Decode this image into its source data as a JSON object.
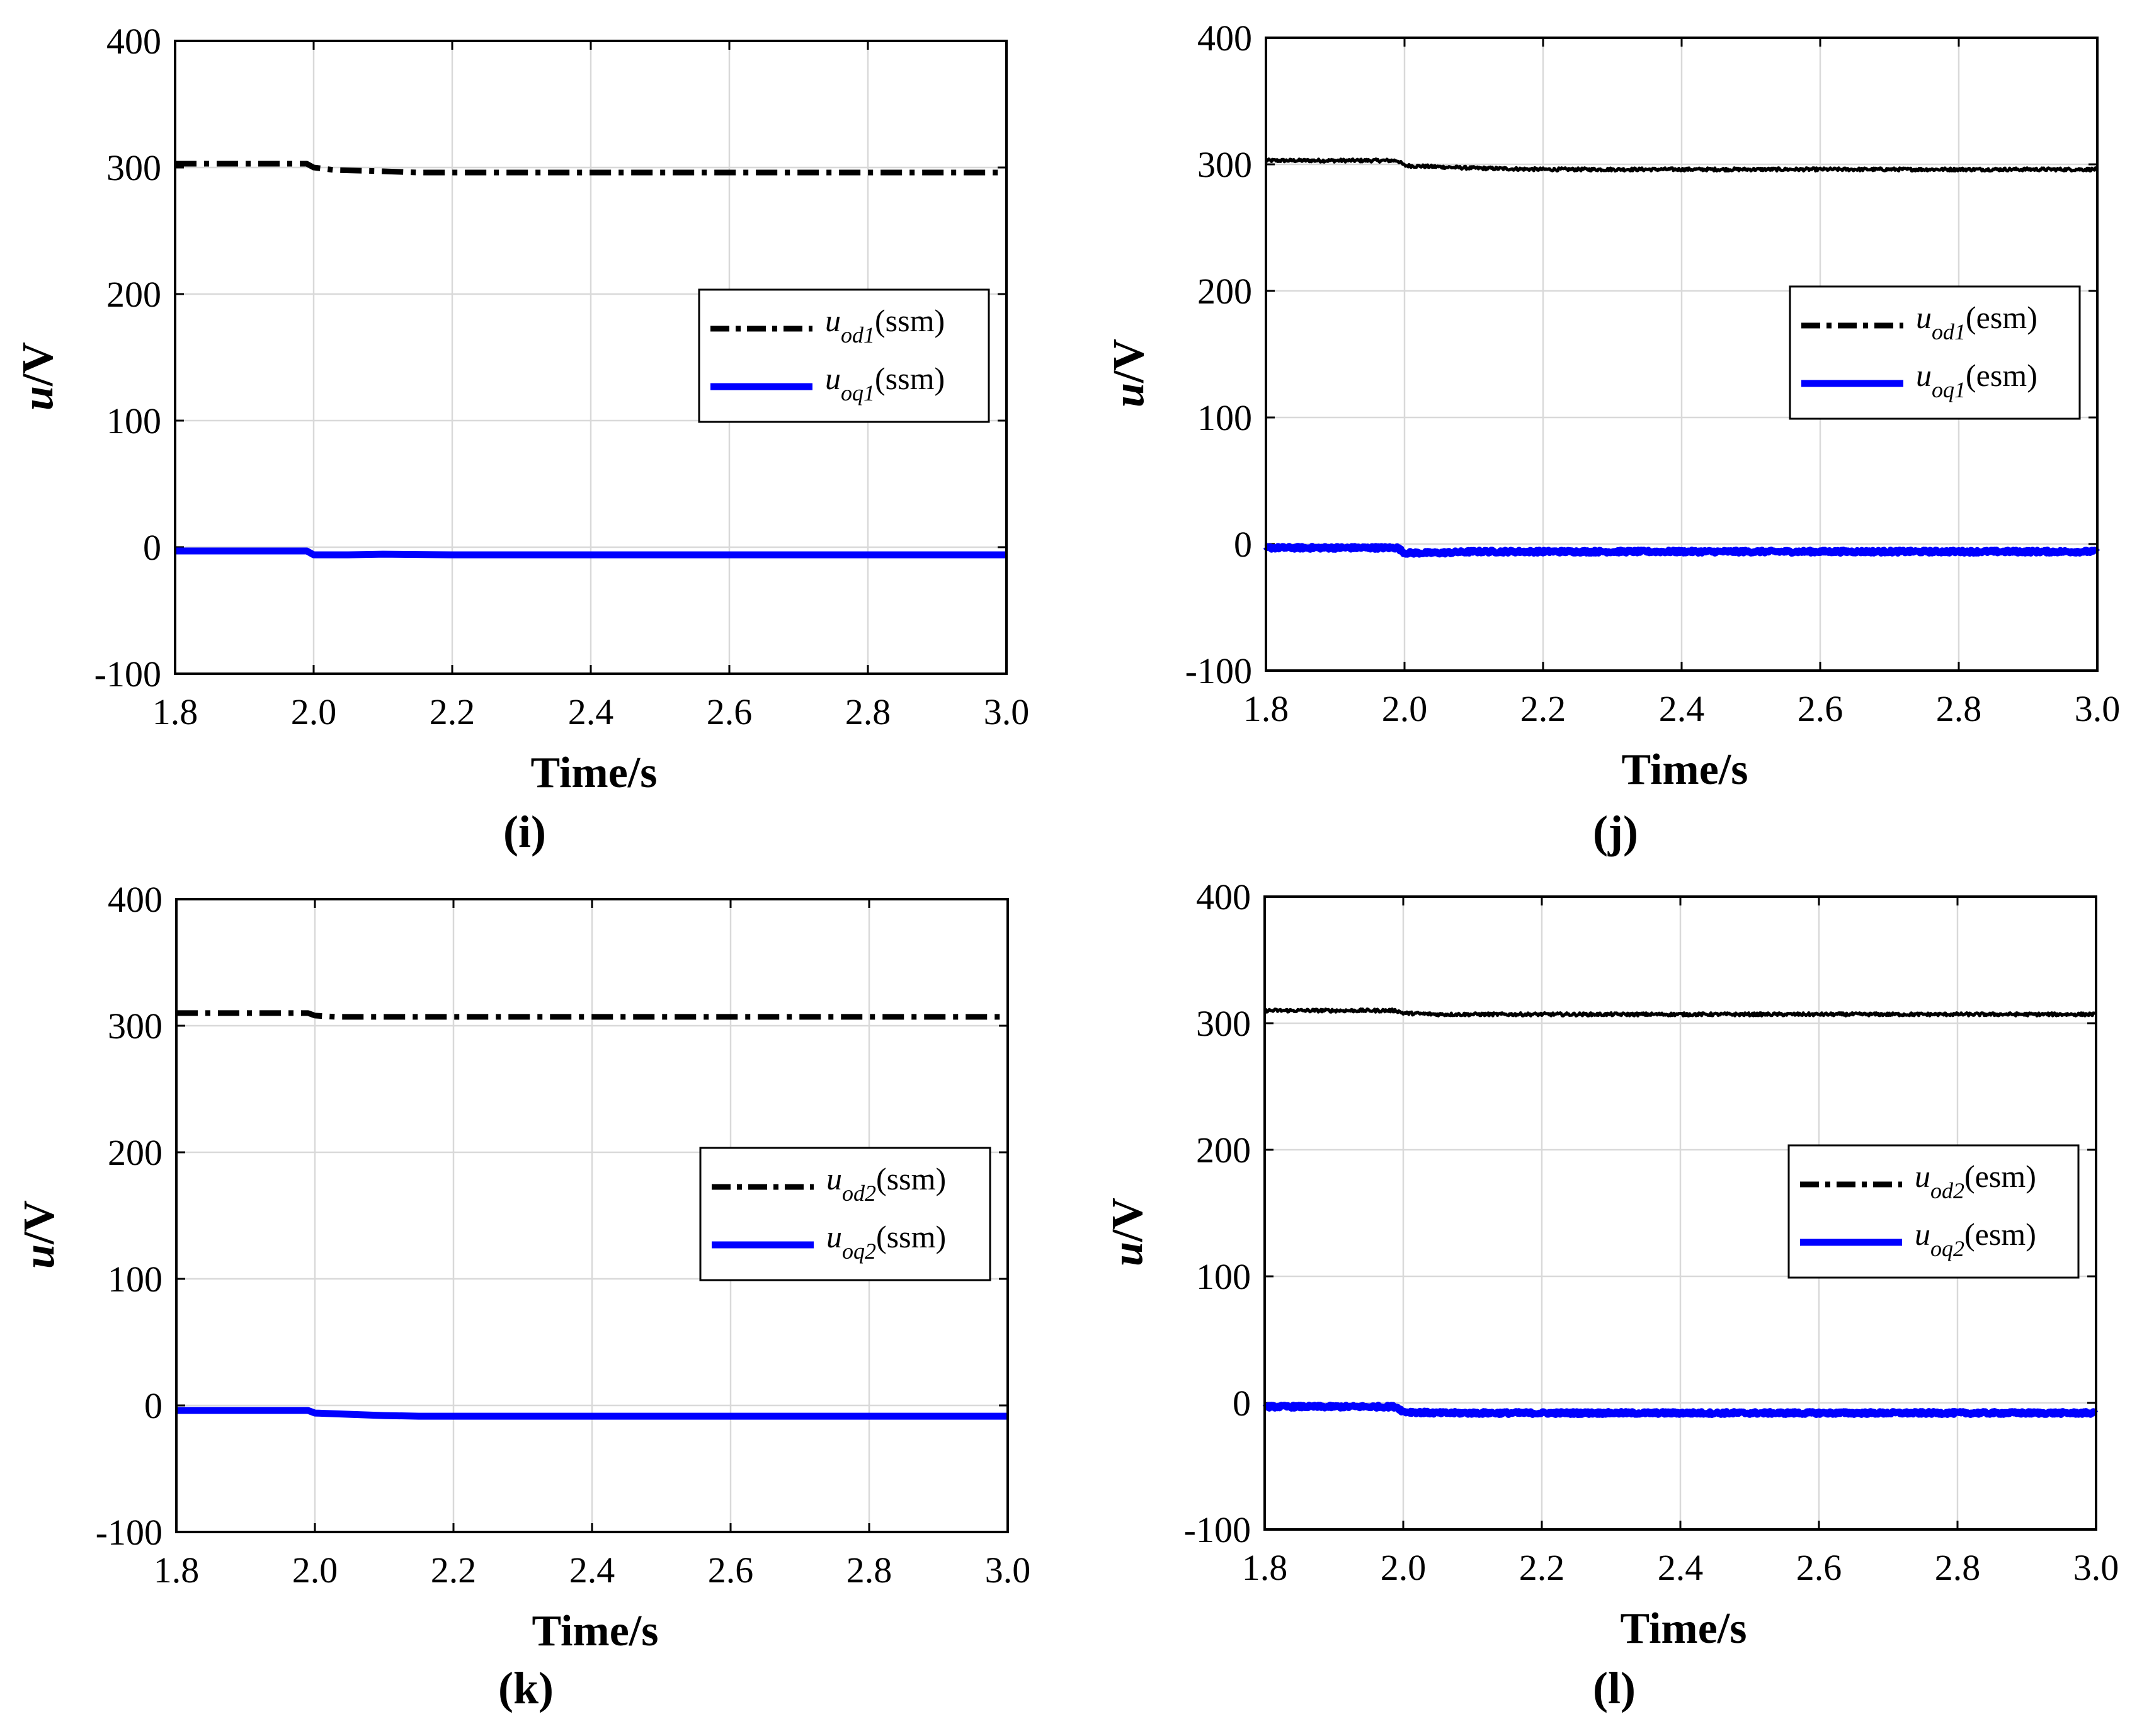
{
  "chart_data": [
    {
      "type": "line",
      "id": "i",
      "caption": "(i)",
      "xlabel": "Time/s",
      "ylabel_main": "u",
      "ylabel_unit": "/V",
      "xlim": [
        1.8,
        3.0
      ],
      "ylim": [
        -100,
        400
      ],
      "xticks": [
        "1.8",
        "2.0",
        "2.2",
        "2.4",
        "2.6",
        "2.8",
        "3.0"
      ],
      "yticks": [
        "-100",
        "0",
        "100",
        "200",
        "300",
        "400"
      ],
      "grid": true,
      "legend_position": "center-right",
      "noisy": false,
      "series": [
        {
          "name_main": "u",
          "name_sub": "od1",
          "name_suffix": "(ssm)",
          "color": "#000000",
          "style": "dashdot",
          "x": [
            1.8,
            1.99,
            2.0,
            2.03,
            2.1,
            2.15,
            2.2,
            2.4,
            2.6,
            2.8,
            3.0
          ],
          "y": [
            303,
            303,
            300,
            298,
            297,
            296,
            296,
            296,
            296,
            296,
            296
          ]
        },
        {
          "name_main": "u",
          "name_sub": "oq1",
          "name_suffix": "(ssm)",
          "color": "#0000ff",
          "style": "solid",
          "x": [
            1.8,
            1.99,
            2.0,
            2.05,
            2.1,
            2.2,
            2.4,
            2.6,
            2.8,
            3.0
          ],
          "y": [
            -3,
            -3,
            -6,
            -6,
            -5.5,
            -6,
            -6,
            -6,
            -6,
            -6
          ]
        }
      ]
    },
    {
      "type": "line",
      "id": "j",
      "caption": "(j)",
      "xlabel": "Time/s",
      "ylabel_main": "u",
      "ylabel_unit": "/V",
      "xlim": [
        1.8,
        3.0
      ],
      "ylim": [
        -100,
        400
      ],
      "xticks": [
        "1.8",
        "2.0",
        "2.2",
        "2.4",
        "2.6",
        "2.8",
        "3.0"
      ],
      "yticks": [
        "-100",
        "0",
        "100",
        "200",
        "300",
        "400"
      ],
      "grid": true,
      "legend_position": "center-right",
      "noisy": true,
      "series": [
        {
          "name_main": "u",
          "name_sub": "od1",
          "name_suffix": "(esm)",
          "color": "#000000",
          "style": "solid",
          "x": [
            1.8,
            1.99,
            2.0,
            2.05,
            2.1,
            2.2,
            2.4,
            2.6,
            2.8,
            3.0
          ],
          "y": [
            303,
            303,
            299,
            298,
            297,
            296,
            296,
            296,
            296,
            296
          ]
        },
        {
          "name_main": "u",
          "name_sub": "oq1",
          "name_suffix": "(esm)",
          "color": "#0000ff",
          "style": "solid",
          "x": [
            1.8,
            1.99,
            2.0,
            2.05,
            2.1,
            2.2,
            2.4,
            2.6,
            2.8,
            3.0
          ],
          "y": [
            -3,
            -3,
            -7,
            -7,
            -6,
            -6,
            -6,
            -6,
            -6,
            -6
          ]
        }
      ]
    },
    {
      "type": "line",
      "id": "k",
      "caption": "(k)",
      "xlabel": "Time/s",
      "ylabel_main": "u",
      "ylabel_unit": "/V",
      "xlim": [
        1.8,
        3.0
      ],
      "ylim": [
        -100,
        400
      ],
      "xticks": [
        "1.8",
        "2.0",
        "2.2",
        "2.4",
        "2.6",
        "2.8",
        "3.0"
      ],
      "yticks": [
        "-100",
        "0",
        "100",
        "200",
        "300",
        "400"
      ],
      "grid": true,
      "legend_position": "center-right",
      "noisy": false,
      "series": [
        {
          "name_main": "u",
          "name_sub": "od2",
          "name_suffix": "(ssm)",
          "color": "#000000",
          "style": "dashdot",
          "x": [
            1.8,
            1.99,
            2.0,
            2.03,
            2.1,
            2.2,
            2.4,
            2.6,
            2.8,
            3.0
          ],
          "y": [
            310,
            310,
            308,
            307,
            307,
            307,
            307,
            307,
            307,
            307
          ]
        },
        {
          "name_main": "u",
          "name_sub": "oq2",
          "name_suffix": "(ssm)",
          "color": "#0000ff",
          "style": "solid",
          "x": [
            1.8,
            1.99,
            2.0,
            2.05,
            2.1,
            2.15,
            2.2,
            2.4,
            2.6,
            2.8,
            3.0
          ],
          "y": [
            -4,
            -4,
            -6,
            -7,
            -8,
            -8.5,
            -8.5,
            -8.5,
            -8.5,
            -8.5,
            -8.5
          ]
        }
      ]
    },
    {
      "type": "line",
      "id": "l",
      "caption": "(l)",
      "xlabel": "Time/s",
      "ylabel_main": "u",
      "ylabel_unit": "/V",
      "xlim": [
        1.8,
        3.0
      ],
      "ylim": [
        -100,
        400
      ],
      "xticks": [
        "1.8",
        "2.0",
        "2.2",
        "2.4",
        "2.6",
        "2.8",
        "3.0"
      ],
      "yticks": [
        "-100",
        "0",
        "100",
        "200",
        "300",
        "400"
      ],
      "grid": true,
      "legend_position": "center-right",
      "noisy": true,
      "series": [
        {
          "name_main": "u",
          "name_sub": "od2",
          "name_suffix": "(esm)",
          "color": "#000000",
          "style": "solid",
          "x": [
            1.8,
            1.99,
            2.0,
            2.05,
            2.1,
            2.2,
            2.4,
            2.6,
            2.8,
            3.0
          ],
          "y": [
            310,
            310,
            308,
            307,
            307,
            307,
            307,
            307,
            307,
            307
          ]
        },
        {
          "name_main": "u",
          "name_sub": "oq2",
          "name_suffix": "(esm)",
          "color": "#0000ff",
          "style": "solid",
          "x": [
            1.8,
            1.99,
            2.0,
            2.05,
            2.1,
            2.2,
            2.4,
            2.6,
            2.8,
            3.0
          ],
          "y": [
            -3,
            -3,
            -7,
            -8,
            -8,
            -8,
            -8,
            -8,
            -8,
            -8
          ]
        }
      ]
    }
  ]
}
